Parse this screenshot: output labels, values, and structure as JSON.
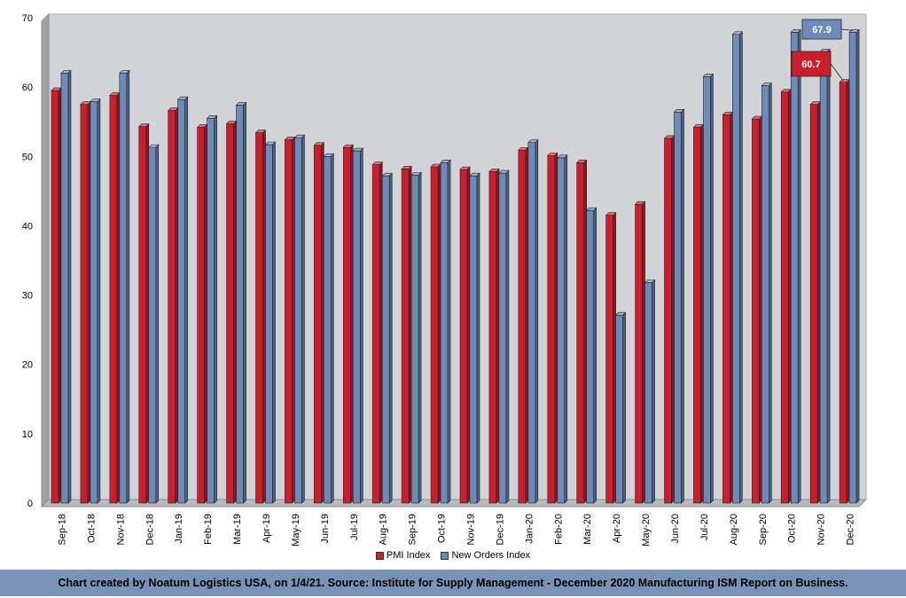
{
  "chart_data": {
    "type": "bar",
    "ylim": [
      0,
      70
    ],
    "yticks": [
      0,
      10,
      20,
      30,
      40,
      50,
      60,
      70
    ],
    "grid": false,
    "legend_position": "bottom",
    "categories": [
      "Sep-18",
      "Oct-18",
      "Nov-18",
      "Dec-18",
      "Jan-19",
      "Feb-19",
      "Mar-19",
      "Apr-19",
      "May-19",
      "Jun-19",
      "Jul-19",
      "Aug-19",
      "Sep-19",
      "Oct-19",
      "Nov-19",
      "Dec-19",
      "Jan-20",
      "Feb-20",
      "Mar-20",
      "Apr-20",
      "May-20",
      "Jun-20",
      "Jul-20",
      "Aug-20",
      "Sep-20",
      "Oct-20",
      "Nov-20",
      "Dec-20"
    ],
    "series": [
      {
        "name": "PMI Index",
        "color": "#cc1f2e",
        "values": [
          59.5,
          57.5,
          58.8,
          54.3,
          56.6,
          54.2,
          54.7,
          53.4,
          52.4,
          51.6,
          51.3,
          48.8,
          48.2,
          48.5,
          48.1,
          47.8,
          50.9,
          50.1,
          49.1,
          41.5,
          43.1,
          52.6,
          54.2,
          56.0,
          55.4,
          59.3,
          57.5,
          60.7
        ]
      },
      {
        "name": "New Orders Index",
        "color": "#6d8bb8",
        "values": [
          62.0,
          57.9,
          62.0,
          51.3,
          58.2,
          55.5,
          57.4,
          51.7,
          52.7,
          50.0,
          50.8,
          47.2,
          47.3,
          49.1,
          47.2,
          47.6,
          52.0,
          49.8,
          42.2,
          27.1,
          31.8,
          56.4,
          61.5,
          67.6,
          60.2,
          67.9,
          65.1,
          67.9
        ]
      }
    ],
    "annotations": [
      {
        "text": "67.9",
        "series": "New Orders Index",
        "category": "Dec-20",
        "bg": "#6d8bb8"
      },
      {
        "text": "60.7",
        "series": "PMI Index",
        "category": "Dec-20",
        "bg": "#cc1f2e"
      }
    ]
  },
  "legend": {
    "items": [
      {
        "label": "PMI Index",
        "color": "#cc1f2e"
      },
      {
        "label": "New Orders Index",
        "color": "#6d8bb8"
      }
    ]
  },
  "footer": {
    "text": "Chart created by Noatum Logistics USA, on 1/4/21. Source: Institute for Supply Management - December 2020 Manufacturing ISM Report on Business."
  }
}
